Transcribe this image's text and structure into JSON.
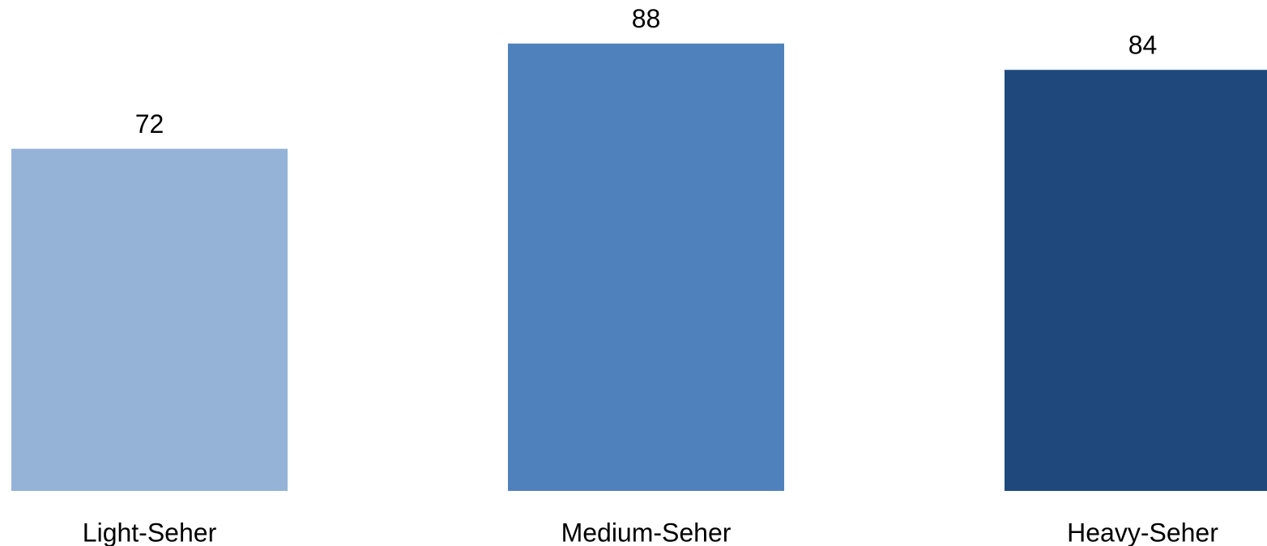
{
  "chart_data": {
    "type": "bar",
    "categories": [
      "Light-Seher",
      "Medium-Seher",
      "Heavy-Seher"
    ],
    "values": [
      72,
      88,
      84
    ],
    "colors": [
      "#95b3d7",
      "#4f81bd",
      "#1f497d"
    ],
    "ylim": [
      20,
      94
    ]
  }
}
